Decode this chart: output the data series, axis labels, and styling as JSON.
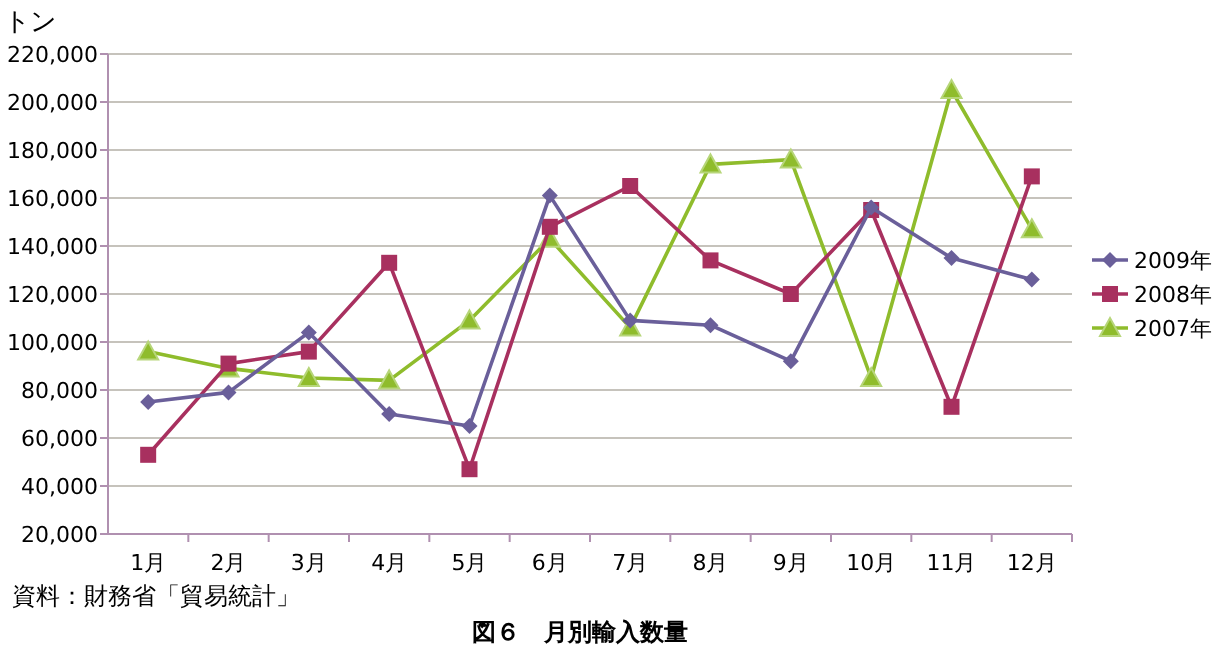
{
  "chart_data": {
    "type": "line",
    "title": "図６　月別輸入数量",
    "ylabel": "トン",
    "annotations": [
      "資料：財務省「貿易統計」"
    ],
    "categories": [
      "1月",
      "2月",
      "3月",
      "4月",
      "5月",
      "6月",
      "7月",
      "8月",
      "9月",
      "10月",
      "11月",
      "12月"
    ],
    "series": [
      {
        "name": "2009年",
        "color": "#6a5f9a",
        "marker": "diamond",
        "values": [
          75000,
          79000,
          104000,
          70000,
          65000,
          161000,
          109000,
          107000,
          92000,
          156000,
          135000,
          126000
        ]
      },
      {
        "name": "2008年",
        "color": "#a8305f",
        "marker": "square",
        "values": [
          53000,
          91000,
          96000,
          133000,
          47000,
          148000,
          165000,
          134000,
          120000,
          155000,
          73000,
          169000
        ]
      },
      {
        "name": "2007年",
        "color": "#8fbc2c",
        "marker": "triangle",
        "values": [
          96000,
          89000,
          85000,
          84000,
          109000,
          143000,
          106000,
          174000,
          176000,
          85000,
          205000,
          147000
        ]
      }
    ],
    "ylim": [
      20000,
      220000
    ],
    "yticks": [
      {
        "value": 20000,
        "label": "20,000"
      },
      {
        "value": 40000,
        "label": "40,000"
      },
      {
        "value": 60000,
        "label": "60,000"
      },
      {
        "value": 80000,
        "label": "80,000"
      },
      {
        "value": 100000,
        "label": "100,000"
      },
      {
        "value": 120000,
        "label": "120,000"
      },
      {
        "value": 140000,
        "label": "140,000"
      },
      {
        "value": 160000,
        "label": "160,000"
      },
      {
        "value": 180000,
        "label": "180,000"
      },
      {
        "value": 200000,
        "label": "200,000"
      },
      {
        "value": 220000,
        "label": "220,000"
      }
    ],
    "grid": "y",
    "legend": "right",
    "line_style": "solid"
  }
}
